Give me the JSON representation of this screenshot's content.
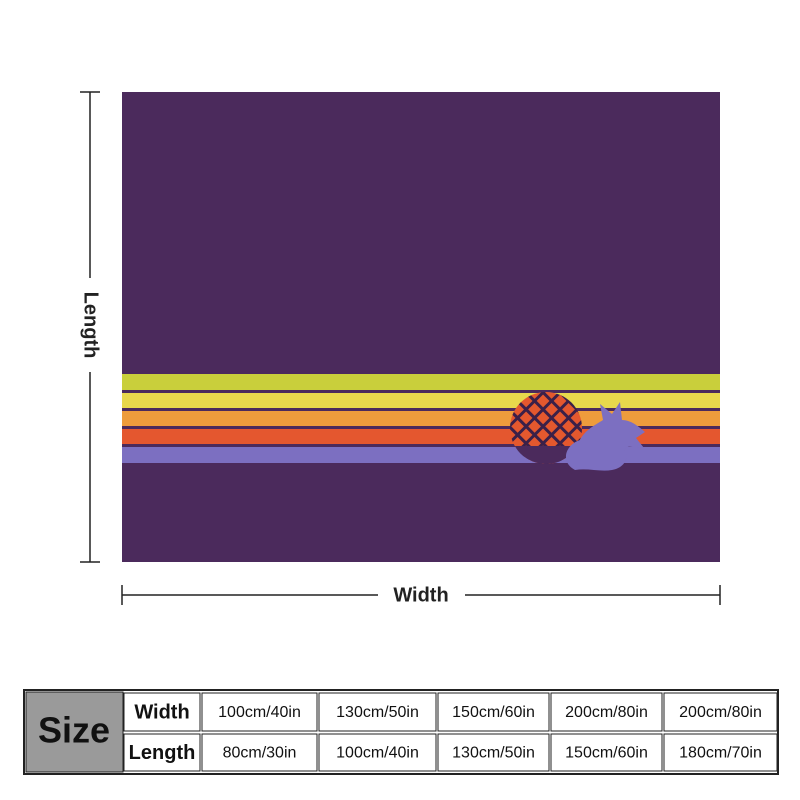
{
  "dimensions": {
    "length": "Length",
    "width": "Width"
  },
  "table": {
    "title": "Size",
    "rows": [
      [
        "Width",
        "100cm/40in",
        "130cm/50in",
        "150cm/60in",
        "200cm/80in",
        "200cm/80in"
      ],
      [
        "Length",
        "80cm/30in",
        "100cm/40in",
        "130cm/50in",
        "150cm/60in",
        "180cm/70in"
      ]
    ]
  }
}
